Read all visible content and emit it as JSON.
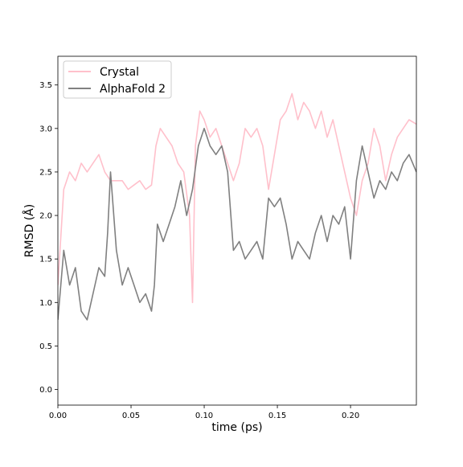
{
  "chart_data": {
    "type": "line",
    "title": "",
    "xlabel": "time (ps)",
    "ylabel": "RMSD (Å)",
    "xlim": [
      0.0,
      0.245
    ],
    "ylim": [
      -0.18,
      3.83
    ],
    "grid": false,
    "legend_position": "upper-left",
    "x_ticks": [
      {
        "value": 0.0,
        "label": "0.00"
      },
      {
        "value": 0.05,
        "label": "0.05"
      },
      {
        "value": 0.1,
        "label": "0.10"
      },
      {
        "value": 0.15,
        "label": "0.15"
      },
      {
        "value": 0.2,
        "label": "0.20"
      }
    ],
    "y_ticks": [
      {
        "value": 0.0,
        "label": "0.0"
      },
      {
        "value": 0.5,
        "label": "0.5"
      },
      {
        "value": 1.0,
        "label": "1.0"
      },
      {
        "value": 1.5,
        "label": "1.5"
      },
      {
        "value": 2.0,
        "label": "2.0"
      },
      {
        "value": 2.5,
        "label": "2.5"
      },
      {
        "value": 3.0,
        "label": "3.0"
      },
      {
        "value": 3.5,
        "label": "3.5"
      }
    ],
    "series": [
      {
        "name": "Crystal",
        "color": "#ffc0cb",
        "x": [
          0.0,
          0.004,
          0.008,
          0.012,
          0.016,
          0.02,
          0.024,
          0.028,
          0.032,
          0.036,
          0.04,
          0.044,
          0.048,
          0.052,
          0.056,
          0.06,
          0.064,
          0.067,
          0.07,
          0.074,
          0.078,
          0.082,
          0.086,
          0.09,
          0.092,
          0.094,
          0.097,
          0.1,
          0.104,
          0.108,
          0.112,
          0.116,
          0.12,
          0.124,
          0.128,
          0.132,
          0.136,
          0.14,
          0.144,
          0.148,
          0.152,
          0.156,
          0.16,
          0.164,
          0.168,
          0.172,
          0.176,
          0.18,
          0.184,
          0.188,
          0.192,
          0.196,
          0.2,
          0.204,
          0.208,
          0.212,
          0.216,
          0.22,
          0.224,
          0.228,
          0.232,
          0.236,
          0.24,
          0.245
        ],
        "y": [
          1.2,
          2.3,
          2.5,
          2.4,
          2.6,
          2.5,
          2.6,
          2.7,
          2.5,
          2.4,
          2.4,
          2.4,
          2.3,
          2.35,
          2.4,
          2.3,
          2.35,
          2.8,
          3.0,
          2.9,
          2.8,
          2.6,
          2.5,
          2.0,
          1.0,
          2.8,
          3.2,
          3.1,
          2.9,
          3.0,
          2.8,
          2.6,
          2.4,
          2.6,
          3.0,
          2.9,
          3.0,
          2.8,
          2.3,
          2.7,
          3.1,
          3.2,
          3.4,
          3.1,
          3.3,
          3.2,
          3.0,
          3.2,
          2.9,
          3.1,
          2.8,
          2.5,
          2.2,
          2.0,
          2.4,
          2.6,
          3.0,
          2.8,
          2.4,
          2.7,
          2.9,
          3.0,
          3.1,
          3.05
        ]
      },
      {
        "name": "AlphaFold 2",
        "color": "#808080",
        "x": [
          0.0,
          0.004,
          0.008,
          0.012,
          0.016,
          0.02,
          0.024,
          0.028,
          0.032,
          0.034,
          0.036,
          0.04,
          0.044,
          0.048,
          0.052,
          0.056,
          0.06,
          0.064,
          0.066,
          0.068,
          0.072,
          0.076,
          0.08,
          0.084,
          0.088,
          0.092,
          0.096,
          0.1,
          0.104,
          0.108,
          0.112,
          0.116,
          0.12,
          0.124,
          0.128,
          0.132,
          0.136,
          0.14,
          0.144,
          0.148,
          0.152,
          0.156,
          0.16,
          0.164,
          0.168,
          0.172,
          0.176,
          0.18,
          0.184,
          0.188,
          0.192,
          0.196,
          0.2,
          0.204,
          0.208,
          0.212,
          0.216,
          0.22,
          0.224,
          0.228,
          0.232,
          0.236,
          0.24,
          0.245
        ],
        "y": [
          0.8,
          1.6,
          1.2,
          1.4,
          0.9,
          0.8,
          1.1,
          1.4,
          1.3,
          1.8,
          2.5,
          1.6,
          1.2,
          1.4,
          1.2,
          1.0,
          1.1,
          0.9,
          1.2,
          1.9,
          1.7,
          1.9,
          2.1,
          2.4,
          2.0,
          2.3,
          2.8,
          3.0,
          2.8,
          2.7,
          2.8,
          2.5,
          1.6,
          1.7,
          1.5,
          1.6,
          1.7,
          1.5,
          2.2,
          2.1,
          2.2,
          1.9,
          1.5,
          1.7,
          1.6,
          1.5,
          1.8,
          2.0,
          1.7,
          2.0,
          1.9,
          2.1,
          1.5,
          2.4,
          2.8,
          2.5,
          2.2,
          2.4,
          2.3,
          2.5,
          2.4,
          2.6,
          2.7,
          2.5
        ]
      }
    ]
  }
}
